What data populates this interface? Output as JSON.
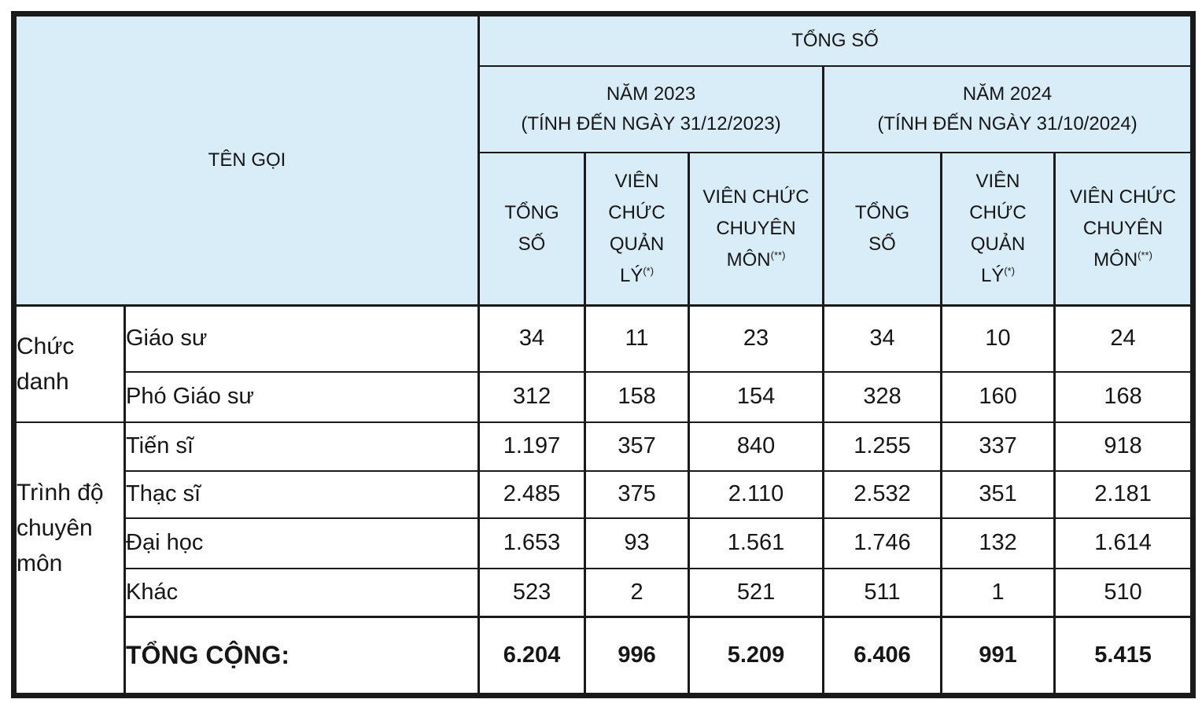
{
  "colors": {
    "header_bg": "#d9edf8",
    "border": "#1a1a1a",
    "text": "#161616"
  },
  "header": {
    "name_col": "TÊN GỌI",
    "top": "TỔNG SỐ",
    "year2023": {
      "title": "NĂM 2023",
      "subtitle": "(TÍNH ĐẾN NGÀY 31/12/2023)"
    },
    "year2024": {
      "title": "NĂM 2024",
      "subtitle": "(TÍNH ĐẾN NGÀY 31/10/2024)"
    },
    "subcols": {
      "total": {
        "l1": "TỔNG",
        "l2": "SỐ"
      },
      "mgmt": {
        "l1": "VIÊN",
        "l2": "CHỨC",
        "l3": "QUẢN",
        "l4": "LÝ",
        "sup": "(*)"
      },
      "prof": {
        "l1": "VIÊN CHỨC",
        "l2": "CHUYÊN",
        "l3": "MÔN",
        "sup": "(**)"
      }
    }
  },
  "groups": {
    "chuc_danh": "Chức danh",
    "trinh_do": "Trình độ chuyên môn"
  },
  "rows": [
    {
      "label": "Giáo sư",
      "values": [
        "34",
        "11",
        "23",
        "34",
        "10",
        "24"
      ]
    },
    {
      "label": "Phó Giáo sư",
      "values": [
        "312",
        "158",
        "154",
        "328",
        "160",
        "168"
      ]
    },
    {
      "label": "Tiến sĩ",
      "values": [
        "1.197",
        "357",
        "840",
        "1.255",
        "337",
        "918"
      ]
    },
    {
      "label": "Thạc sĩ",
      "values": [
        "2.485",
        "375",
        "2.110",
        "2.532",
        "351",
        "2.181"
      ]
    },
    {
      "label": "Đại học",
      "values": [
        "1.653",
        "93",
        "1.561",
        "1.746",
        "132",
        "1.614"
      ]
    },
    {
      "label": "Khác",
      "values": [
        "523",
        "2",
        "521",
        "511",
        "1",
        "510"
      ]
    }
  ],
  "total_row": {
    "label": "TỔNG CỘNG:",
    "values": [
      "6.204",
      "996",
      "5.209",
      "6.406",
      "991",
      "5.415"
    ]
  }
}
